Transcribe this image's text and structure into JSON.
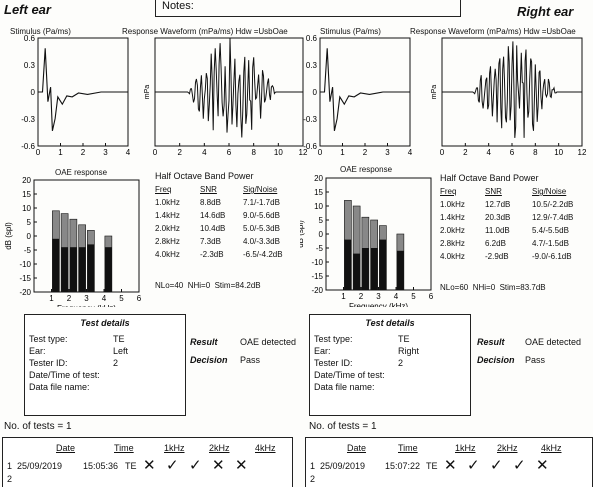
{
  "header": {
    "left_title": "Left ear",
    "right_title": "Right ear",
    "notes_label": "Notes:"
  },
  "left": {
    "stimulus_title": "Stimulus (Pa/ms)",
    "waveform_title": "Response Waveform (mPa/ms) Hdw =UsbOae",
    "oae_title": "OAE response",
    "band_title": "Half Octave Band Power",
    "band_headers": [
      "Freq",
      "SNR",
      "Sig/Noise"
    ],
    "band_rows": [
      [
        "1.0kHz",
        "8.8dB",
        "7.1/-1.7dB"
      ],
      [
        "1.4kHz",
        "14.6dB",
        "9.0/-5.6dB"
      ],
      [
        "2.0kHz",
        "10.4dB",
        "5.0/-5.3dB"
      ],
      [
        "2.8kHz",
        "7.3dB",
        "4.0/-3.3dB"
      ],
      [
        "4.0kHz",
        "-2.3dB",
        "-6.5/-4.2dB"
      ]
    ],
    "noise_line": "NLo=40  NHi=0  Stim=84.2dB",
    "details": {
      "title": "Test details",
      "rows": [
        [
          "Test type:",
          "TE"
        ],
        [
          "Ear:",
          "Left"
        ],
        [
          "Tester ID:",
          "2"
        ],
        [
          "Date/Time of test:",
          ""
        ],
        [
          "Data file name:",
          ""
        ]
      ]
    },
    "result_label": "Result",
    "result_value": "OAE detected",
    "decision_label": "Decision",
    "decision_value": "Pass",
    "num_tests": "No. of tests = 1",
    "table_headers": [
      "Date",
      "Time",
      "1kHz",
      "2kHz",
      "4kHz"
    ],
    "entry": {
      "num": "1",
      "date": "25/09/2019",
      "time": "15:05:36",
      "type": "TE",
      "marks": [
        "✕",
        "✓",
        "✓",
        "✕",
        "✕"
      ]
    },
    "entry2_num": "2",
    "chart_data": {
      "type": "bar",
      "title": "OAE response",
      "xlabel": "Frequency (kHz)",
      "ylabel": "dB (spl)",
      "x": [
        1.25,
        1.75,
        2.25,
        2.75,
        3.25,
        4.25
      ],
      "series": [
        {
          "values": [
            9,
            8,
            6,
            4,
            2,
            0
          ]
        },
        {
          "values": [
            -1,
            -4,
            -4,
            -4,
            -3,
            -4
          ]
        }
      ],
      "xlim": [
        0,
        6
      ],
      "ylim": [
        -20,
        20
      ]
    }
  },
  "right": {
    "stimulus_title": "Stimulus (Pa/ms)",
    "waveform_title": "Response Waveform (mPa/ms) Hdw =UsbOae",
    "oae_title": "OAE response",
    "band_title": "Half Octave Band Power",
    "band_headers": [
      "Freq",
      "SNR",
      "Sig/Noise"
    ],
    "band_rows": [
      [
        "1.0kHz",
        "12.7dB",
        "10.5/-2.2dB"
      ],
      [
        "1.4kHz",
        "20.3dB",
        "12.9/-7.4dB"
      ],
      [
        "2.0kHz",
        "11.0dB",
        "5.4/-5.5dB"
      ],
      [
        "2.8kHz",
        "6.2dB",
        "4.7/-1.5dB"
      ],
      [
        "4.0kHz",
        "-2.9dB",
        "-9.0/-6.1dB"
      ]
    ],
    "noise_line": "NLo=60  NHi=0  Stim=83.7dB",
    "details": {
      "title": "Test details",
      "rows": [
        [
          "Test type:",
          "TE"
        ],
        [
          "Ear:",
          "Right"
        ],
        [
          "Tester ID:",
          "2"
        ],
        [
          "Date/Time of test:",
          ""
        ],
        [
          "Data file name:",
          ""
        ]
      ]
    },
    "result_label": "Result",
    "result_value": "OAE detected",
    "decision_label": "Decision",
    "decision_value": "Pass",
    "num_tests": "No. of tests = 1",
    "table_headers": [
      "Date",
      "Time",
      "1kHz",
      "2kHz",
      "4kHz"
    ],
    "entry": {
      "num": "1",
      "date": "25/09/2019",
      "time": "15:07:22",
      "type": "TE",
      "marks": [
        "✕",
        "✓",
        "✓",
        "✓",
        "✕"
      ]
    },
    "entry2_num": "2",
    "chart_data": {
      "type": "bar",
      "title": "OAE response",
      "xlabel": "Frequency (kHz)",
      "ylabel": "dB (spl)",
      "x": [
        1.25,
        1.75,
        2.25,
        2.75,
        3.25,
        4.25
      ],
      "series": [
        {
          "values": [
            12,
            10,
            6,
            5,
            3,
            0
          ]
        },
        {
          "values": [
            -2,
            -7,
            -5,
            -5,
            -2,
            -6
          ]
        }
      ],
      "xlim": [
        0,
        6
      ],
      "ylim": [
        -20,
        20
      ]
    }
  },
  "axes": {
    "stim_y": [
      "0.6",
      "0.3",
      "0",
      "-0.3",
      "-0.6"
    ],
    "stim_x": [
      "0",
      "1",
      "2",
      "3",
      "4"
    ],
    "wave_y": [
      "mPa"
    ],
    "wave_x": [
      "0",
      "2",
      "4",
      "6",
      "8",
      "10",
      "12"
    ],
    "oae_y": [
      "20",
      "15",
      "10",
      "5",
      "0",
      "-5",
      "-10",
      "-15",
      "-20"
    ],
    "oae_x": [
      "1",
      "2",
      "3",
      "4",
      "5",
      "6"
    ]
  }
}
